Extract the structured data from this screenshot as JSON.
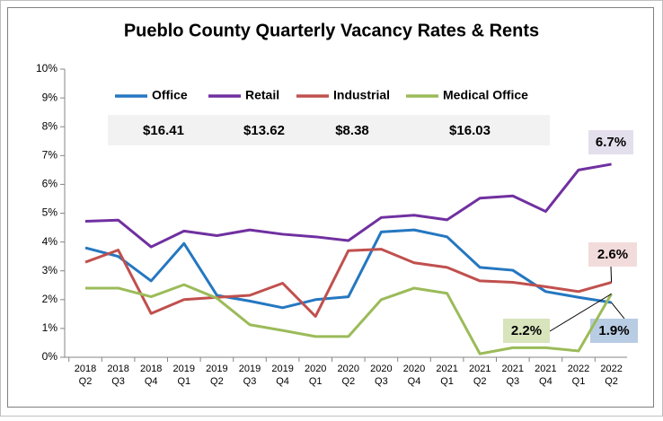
{
  "chart_data": {
    "type": "line",
    "title": "Pueblo County Quarterly Vacancy Rates & Rents",
    "categories": [
      [
        "2018",
        "Q2"
      ],
      [
        "2018",
        "Q3"
      ],
      [
        "2018",
        "Q4"
      ],
      [
        "2019",
        "Q1"
      ],
      [
        "2019",
        "Q2"
      ],
      [
        "2019",
        "Q3"
      ],
      [
        "2019",
        "Q4"
      ],
      [
        "2020",
        "Q1"
      ],
      [
        "2020",
        "Q2"
      ],
      [
        "2020",
        "Q3"
      ],
      [
        "2020",
        "Q4"
      ],
      [
        "2021",
        "Q1"
      ],
      [
        "2021",
        "Q2"
      ],
      [
        "2021",
        "Q3"
      ],
      [
        "2021",
        "Q4"
      ],
      [
        "2022",
        "Q1"
      ],
      [
        "2022",
        "Q2"
      ]
    ],
    "ylim": [
      0,
      10
    ],
    "yticks": [
      {
        "value": 0,
        "label": "0%"
      },
      {
        "value": 1,
        "label": "1%"
      },
      {
        "value": 2,
        "label": "2%"
      },
      {
        "value": 3,
        "label": "3%"
      },
      {
        "value": 4,
        "label": "4%"
      },
      {
        "value": 5,
        "label": "5%"
      },
      {
        "value": 6,
        "label": "6%"
      },
      {
        "value": 7,
        "label": "7%"
      },
      {
        "value": 8,
        "label": "8%"
      },
      {
        "value": 9,
        "label": "9%"
      },
      {
        "value": 10,
        "label": "10%"
      }
    ],
    "grid": false,
    "legend": "top",
    "series": [
      {
        "name": "Office",
        "color": "#2577c0",
        "rent": "$16.41",
        "values": [
          3.8,
          3.5,
          2.65,
          3.95,
          2.15,
          1.95,
          1.72,
          2.0,
          2.1,
          4.35,
          4.42,
          4.18,
          3.12,
          3.02,
          2.28,
          2.08,
          1.9
        ],
        "value_labels": [
          null,
          null,
          null,
          null,
          null,
          null,
          null,
          null,
          null,
          null,
          null,
          null,
          null,
          null,
          null,
          null,
          "1.9%"
        ]
      },
      {
        "name": "Retail",
        "color": "#7030a0",
        "rent": "$13.62",
        "values": [
          4.72,
          4.76,
          3.83,
          4.38,
          4.22,
          4.42,
          4.27,
          4.18,
          4.05,
          4.85,
          4.93,
          4.77,
          5.52,
          5.6,
          5.06,
          6.5,
          6.7
        ],
        "value_labels": [
          null,
          null,
          null,
          null,
          null,
          null,
          null,
          null,
          null,
          null,
          null,
          null,
          null,
          null,
          null,
          null,
          "6.7%"
        ]
      },
      {
        "name": "Industrial",
        "color": "#c0504d",
        "rent": "$8.38",
        "values": [
          3.3,
          3.72,
          1.52,
          2.0,
          2.08,
          2.15,
          2.57,
          1.42,
          3.7,
          3.75,
          3.28,
          3.12,
          2.65,
          2.6,
          2.45,
          2.28,
          2.6
        ],
        "value_labels": [
          null,
          null,
          null,
          null,
          null,
          null,
          null,
          null,
          null,
          null,
          null,
          null,
          null,
          null,
          null,
          null,
          "2.6%"
        ]
      },
      {
        "name": "Medical Office",
        "color": "#9bbb59",
        "rent": "$16.03",
        "values": [
          2.4,
          2.4,
          2.1,
          2.52,
          2.05,
          1.13,
          0.93,
          0.72,
          0.72,
          2.0,
          2.4,
          2.22,
          0.12,
          0.33,
          0.33,
          0.22,
          2.2
        ],
        "value_labels": [
          null,
          null,
          null,
          null,
          null,
          null,
          null,
          null,
          null,
          null,
          null,
          null,
          null,
          null,
          null,
          null,
          "2.2%"
        ]
      }
    ]
  }
}
